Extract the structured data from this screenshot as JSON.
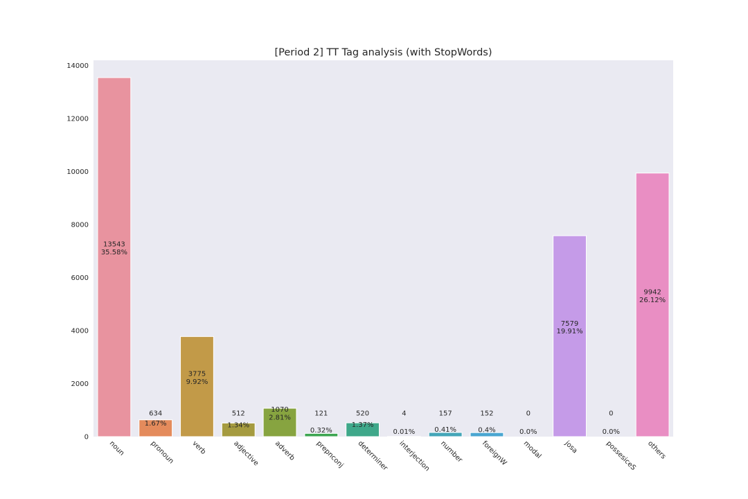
{
  "chart_data": {
    "type": "bar",
    "title": "[Period 2] TT Tag analysis (with StopWords)",
    "xlabel": "",
    "ylabel": "",
    "ylim": [
      0,
      14000
    ],
    "yticks": [
      0,
      2000,
      4000,
      6000,
      8000,
      10000,
      12000,
      14000
    ],
    "grid": false,
    "categories": [
      "noun",
      "pronoun",
      "verb",
      "adjective",
      "adverb",
      "prepnconj",
      "determiner",
      "interjection",
      "number",
      "foreignW",
      "modal",
      "josa",
      "possesiceS",
      "others"
    ],
    "values": [
      13543,
      634,
      3775,
      512,
      1070,
      121,
      520,
      4,
      157,
      152,
      0,
      7579,
      0,
      9942
    ],
    "count_labels": [
      "13543",
      "634",
      "3775",
      "512",
      "1070",
      "121",
      "520",
      "4",
      "157",
      "152",
      "0",
      "7579",
      "0",
      "9942"
    ],
    "percent_labels": [
      "35.58%",
      "1.67%",
      "9.92%",
      "1.34%",
      "2.81%",
      "0.32%",
      "1.37%",
      "0.01%",
      "0.41%",
      "0.4%",
      "0.0%",
      "19.91%",
      "0.0%",
      "26.12%"
    ],
    "colors": [
      "#e8939f",
      "#e48b5c",
      "#c29a48",
      "#a59b40",
      "#87a440",
      "#3da551",
      "#3fa88a",
      "#41a5a0",
      "#44a6b8",
      "#4aa6d1",
      "#9aa8e8",
      "#c59be8",
      "#e08fe1",
      "#e98ec3"
    ]
  }
}
